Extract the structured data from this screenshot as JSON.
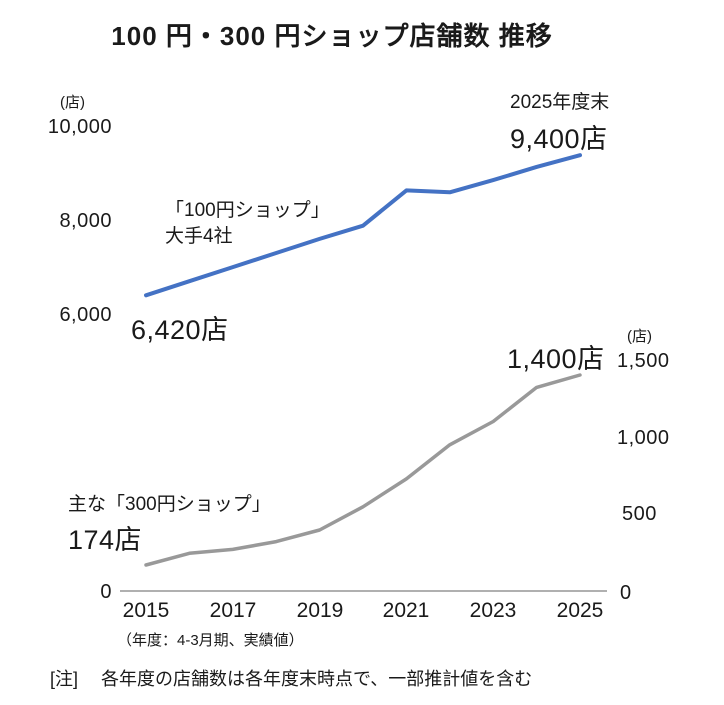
{
  "title": "100 円・300 円ショップ店舗数 推移",
  "annotations": {
    "end_year_label": "2025年度末",
    "blue_end_value": "9,400店",
    "blue_series_label_line1": "「100円ショップ」",
    "blue_series_label_line2": "大手4社",
    "blue_start_value": "6,420店",
    "gray_series_label": "主な「300円ショップ」",
    "gray_start_value": "174店",
    "gray_end_value": "1,400店"
  },
  "x_axis_caption": "（年度：4-3月期、実績値）",
  "note": "[注]　 各年度の店舗数は各年度末時点で、一部推計値を含む",
  "colors": {
    "blue_line": "#4472C4",
    "gray_line": "#999999",
    "axis_line": "#808080",
    "text": "#1a1a1a"
  },
  "chart_data": {
    "type": "line",
    "title": "100 円・300 円ショップ店舗数 推移",
    "x": [
      2015,
      2016,
      2017,
      2018,
      2019,
      2020,
      2021,
      2022,
      2023,
      2024,
      2025
    ],
    "x_tick_labels": [
      "2015",
      "2017",
      "2019",
      "2021",
      "2023",
      "2025"
    ],
    "series": [
      {
        "name": "「100円ショップ」大手4社",
        "axis": "left",
        "color": "#4472C4",
        "values": [
          6420,
          6720,
          7020,
          7320,
          7620,
          7900,
          8650,
          8610,
          8870,
          9150,
          9400
        ],
        "start_label": "6,420店",
        "end_label": "9,400店"
      },
      {
        "name": "主な「300円ショップ」",
        "axis": "right",
        "color": "#999999",
        "values": [
          174,
          250,
          275,
          325,
          400,
          550,
          730,
          950,
          1100,
          1320,
          1400
        ],
        "start_label": "174店",
        "end_label": "1,400店"
      }
    ],
    "left_axis": {
      "unit": "(店)",
      "ticks": [
        "10,000",
        "8,000",
        "6,000",
        "0"
      ],
      "lim": [
        0,
        10000
      ]
    },
    "right_axis": {
      "unit": "(店)",
      "ticks": [
        "1,500",
        "1,000",
        "500",
        "0"
      ],
      "lim": [
        0,
        1500
      ]
    },
    "grid": false,
    "legend": "inline-annotations"
  }
}
